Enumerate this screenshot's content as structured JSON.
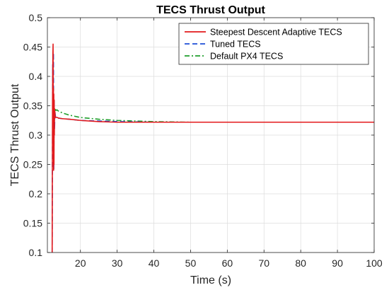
{
  "chart_data": {
    "type": "line",
    "title": "TECS Thrust Output",
    "xlabel": "Time (s)",
    "ylabel": "TECS Thrust Output",
    "xlim": [
      11,
      100
    ],
    "ylim": [
      0.1,
      0.5
    ],
    "xticks": [
      20,
      30,
      40,
      50,
      60,
      70,
      80,
      90,
      100
    ],
    "yticks": [
      0.1,
      0.15,
      0.2,
      0.25,
      0.3,
      0.35,
      0.4,
      0.45,
      0.5
    ],
    "xtick_labels": [
      "20",
      "30",
      "40",
      "50",
      "60",
      "70",
      "80",
      "90",
      "100"
    ],
    "ytick_labels": [
      "0.1",
      "0.15",
      "0.2",
      "0.25",
      "0.3",
      "0.35",
      "0.4",
      "0.45",
      "0.5"
    ],
    "grid": true,
    "legend_position": "top-right",
    "series": [
      {
        "name": "Steepest Descent Adaptive TECS",
        "color": "#e31a1c",
        "style": "solid",
        "x": [
          12.3,
          12.4,
          12.5,
          12.55,
          12.6,
          12.65,
          12.7,
          12.75,
          12.8,
          12.85,
          12.9,
          12.95,
          13.0,
          13.05,
          13.1,
          13.2,
          13.4,
          13.7,
          14,
          15,
          17,
          20,
          25,
          30,
          40,
          60,
          80,
          100
        ],
        "y": [
          0.1,
          0.36,
          0.44,
          0.455,
          0.3,
          0.38,
          0.24,
          0.37,
          0.25,
          0.36,
          0.3,
          0.345,
          0.33,
          0.34,
          0.332,
          0.33,
          0.33,
          0.33,
          0.329,
          0.328,
          0.327,
          0.325,
          0.323,
          0.322,
          0.322,
          0.322,
          0.322,
          0.322
        ]
      },
      {
        "name": "Tuned TECS",
        "color": "#1f4fd8",
        "style": "dashed",
        "x": [
          12.3,
          12.45,
          12.55,
          12.65,
          12.75,
          12.85,
          12.95,
          13.05,
          13.2,
          13.4,
          13.7,
          14,
          15,
          17,
          20,
          25,
          30,
          40,
          60,
          80,
          100
        ],
        "y": [
          0.1,
          0.42,
          0.3,
          0.44,
          0.24,
          0.36,
          0.31,
          0.34,
          0.332,
          0.33,
          0.33,
          0.329,
          0.328,
          0.327,
          0.325,
          0.324,
          0.323,
          0.322,
          0.322,
          0.322,
          0.322
        ]
      },
      {
        "name": "Default PX4 TECS",
        "color": "#1f9e2c",
        "style": "dashdot",
        "x": [
          12.5,
          12.7,
          12.9,
          13.1,
          13.3,
          13.6,
          14,
          15,
          17,
          20,
          25,
          30,
          40,
          50,
          60,
          80,
          100
        ],
        "y": [
          0.33,
          0.35,
          0.34,
          0.345,
          0.342,
          0.343,
          0.341,
          0.338,
          0.334,
          0.33,
          0.327,
          0.325,
          0.323,
          0.322,
          0.322,
          0.322,
          0.322
        ]
      }
    ]
  }
}
